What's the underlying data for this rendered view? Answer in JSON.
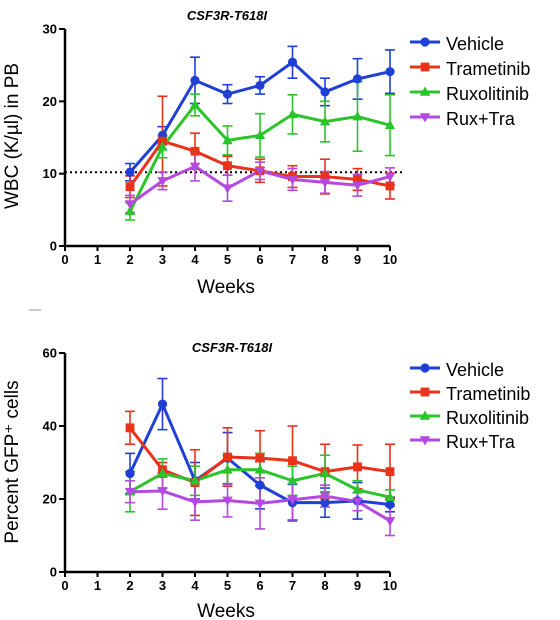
{
  "colors": {
    "Vehicle": "#1f3fd6",
    "Trametinib": "#e8331a",
    "Ruxolitinib": "#2bc42b",
    "Rux+Tra": "#b449e0"
  },
  "chart_data": [
    {
      "type": "line",
      "title": "CSF3R-T618I",
      "xlabel": "Weeks",
      "ylabel": "WBC (K/µl) in PB",
      "xlim": [
        0,
        10
      ],
      "ylim": [
        0,
        30
      ],
      "xticks": [
        "0",
        "1",
        "2",
        "3",
        "4",
        "5",
        "6",
        "7",
        "8",
        "9",
        "10"
      ],
      "yticks": [
        "0",
        "10",
        "20",
        "30"
      ],
      "reference_line_y": 10.2,
      "legend": "right",
      "x": [
        2,
        3,
        4,
        5,
        6,
        7,
        8,
        9,
        10
      ],
      "series": [
        {
          "name": "Vehicle",
          "marker": "circle",
          "values": [
            10.2,
            15.3,
            22.9,
            21.0,
            22.2,
            25.4,
            21.3,
            23.1,
            24.1
          ],
          "errors": [
            1.2,
            1.2,
            3.2,
            1.3,
            1.2,
            2.2,
            1.9,
            2.8,
            3.0
          ]
        },
        {
          "name": "Trametinib",
          "marker": "square",
          "values": [
            8.2,
            14.5,
            13.1,
            11.1,
            10.4,
            9.6,
            9.6,
            9.2,
            8.3
          ],
          "errors": [
            1.5,
            6.2,
            2.5,
            1.3,
            1.6,
            1.5,
            2.4,
            1.5,
            1.8
          ]
        },
        {
          "name": "Ruxolitinib",
          "marker": "triangle-up",
          "values": [
            4.8,
            13.7,
            19.5,
            14.6,
            15.3,
            18.2,
            17.2,
            17.9,
            16.7
          ],
          "errors": [
            1.2,
            1.5,
            1.5,
            2.0,
            3.0,
            2.7,
            2.8,
            4.8,
            4.2
          ]
        },
        {
          "name": "Rux+Tra",
          "marker": "triangle-down",
          "values": [
            5.8,
            9.0,
            11.0,
            8.0,
            10.4,
            9.2,
            8.8,
            8.4,
            9.6
          ],
          "errors": [
            1.2,
            1.2,
            2.0,
            1.8,
            1.2,
            1.5,
            1.5,
            1.5,
            1.2
          ]
        }
      ]
    },
    {
      "type": "line",
      "title": "CSF3R-T618I",
      "xlabel": "Weeks",
      "ylabel": "Percent GFP⁺ cells",
      "xlim": [
        0,
        10
      ],
      "ylim": [
        0,
        60
      ],
      "xticks": [
        "0",
        "1",
        "2",
        "3",
        "4",
        "5",
        "6",
        "7",
        "8",
        "9",
        "10"
      ],
      "yticks": [
        "0",
        "20",
        "40",
        "60"
      ],
      "legend": "right",
      "x": [
        2,
        3,
        4,
        5,
        6,
        7,
        8,
        9,
        10
      ],
      "series": [
        {
          "name": "Vehicle",
          "marker": "circle",
          "values": [
            27.0,
            46.0,
            25.0,
            31.2,
            23.8,
            19.0,
            19.0,
            19.5,
            18.5
          ],
          "errors": [
            5.5,
            7.0,
            5.0,
            7.0,
            6.5,
            5.0,
            4.0,
            5.0,
            2.0
          ]
        },
        {
          "name": "Trametinib",
          "marker": "square",
          "values": [
            39.5,
            28.0,
            24.5,
            31.5,
            31.2,
            30.5,
            27.5,
            28.8,
            27.5
          ],
          "errors": [
            4.5,
            2.0,
            9.0,
            8.0,
            7.5,
            9.5,
            7.5,
            6.0,
            7.5
          ]
        },
        {
          "name": "Ruxolitinib",
          "marker": "triangle-up",
          "values": [
            22.0,
            27.0,
            25.0,
            28.0,
            28.0,
            25.0,
            27.0,
            22.5,
            20.5
          ],
          "errors": [
            5.5,
            4.0,
            4.0,
            4.0,
            4.5,
            4.0,
            5.0,
            2.5,
            2.0
          ]
        },
        {
          "name": "Rux+Tra",
          "marker": "triangle-down",
          "values": [
            22.0,
            22.2,
            19.2,
            19.6,
            18.8,
            19.8,
            20.8,
            19.3,
            14.0
          ],
          "errors": [
            3.0,
            5.0,
            5.0,
            4.5,
            7.0,
            5.5,
            3.0,
            2.5,
            4.0
          ]
        }
      ]
    }
  ]
}
